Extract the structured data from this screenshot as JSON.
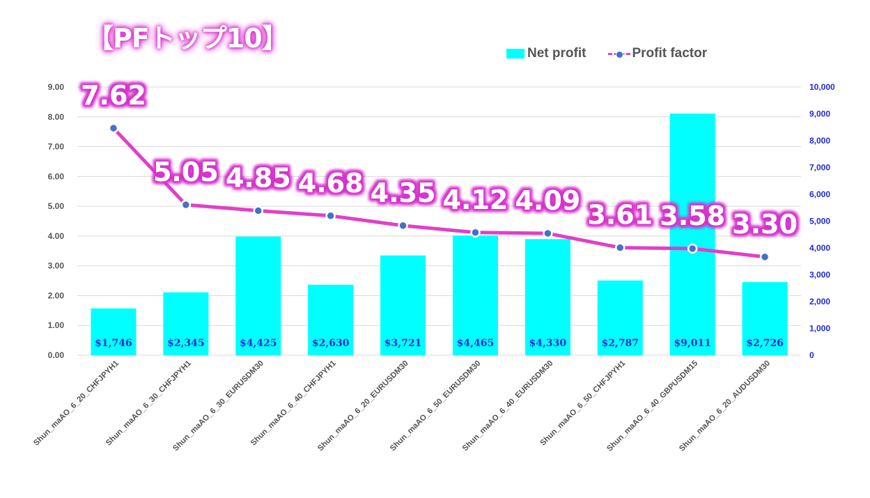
{
  "title": "【PFトップ10】",
  "legend": {
    "net_profit": "Net profit",
    "profit_factor": "Profit factor"
  },
  "colors": {
    "bar": "#00ffff",
    "line": "#e040c8",
    "marker": "#4472c4",
    "bar_label": "#1f2ad8",
    "right_axis": "#1f2ad8",
    "left_axis": "#555555",
    "pf_label_glow": "#d633cc"
  },
  "chart_data": {
    "type": "bar",
    "categories": [
      "Shun_maAO_6_20_CHFJPYH1",
      "Shun_maAO_6_30_CHFJPYH1",
      "Shun_maAO_6_30_EURUSDM30",
      "Shun_maAO_6_40_CHFJPYH1",
      "Shun_maAO_6_20_EURUSDM30",
      "Shun_maAO_6_50_EURUSDM30",
      "Shun_maAO_6_40_EURUSDM30",
      "Shun_maAO_6_50_CHFJPYH1",
      "Shun_maAO_6_40_GBPUSDM15",
      "Shun_maAO_6_20_AUDUSDM30"
    ],
    "series": [
      {
        "name": "Net profit",
        "type": "bar",
        "axis": "right",
        "values": [
          1746,
          2345,
          4425,
          2630,
          3721,
          4465,
          4330,
          2787,
          9011,
          2726
        ],
        "labels": [
          "$1,746",
          "$2,345",
          "$4,425",
          "$2,630",
          "$3,721",
          "$4,465",
          "$4,330",
          "$2,787",
          "$9,011",
          "$2,726"
        ]
      },
      {
        "name": "Profit factor",
        "type": "line",
        "axis": "left",
        "values": [
          7.62,
          5.05,
          4.85,
          4.68,
          4.35,
          4.12,
          4.09,
          3.61,
          3.58,
          3.3
        ],
        "labels": [
          "7.62",
          "5.05",
          "4.85",
          "4.68",
          "4.35",
          "4.12",
          "4.09",
          "3.61",
          "3.58",
          "3.30"
        ]
      }
    ],
    "y_left": {
      "ylim": [
        0,
        9
      ],
      "ticks": [
        "0.00",
        "1.00",
        "2.00",
        "3.00",
        "4.00",
        "5.00",
        "6.00",
        "7.00",
        "8.00",
        "9.00"
      ]
    },
    "y_right": {
      "ylim": [
        0,
        10000
      ],
      "ticks": [
        "0",
        "1,000",
        "2,000",
        "3,000",
        "4,000",
        "5,000",
        "6,000",
        "7,000",
        "8,000",
        "9,000",
        "10,000"
      ]
    },
    "grid": true,
    "legend_position": "top-right"
  }
}
